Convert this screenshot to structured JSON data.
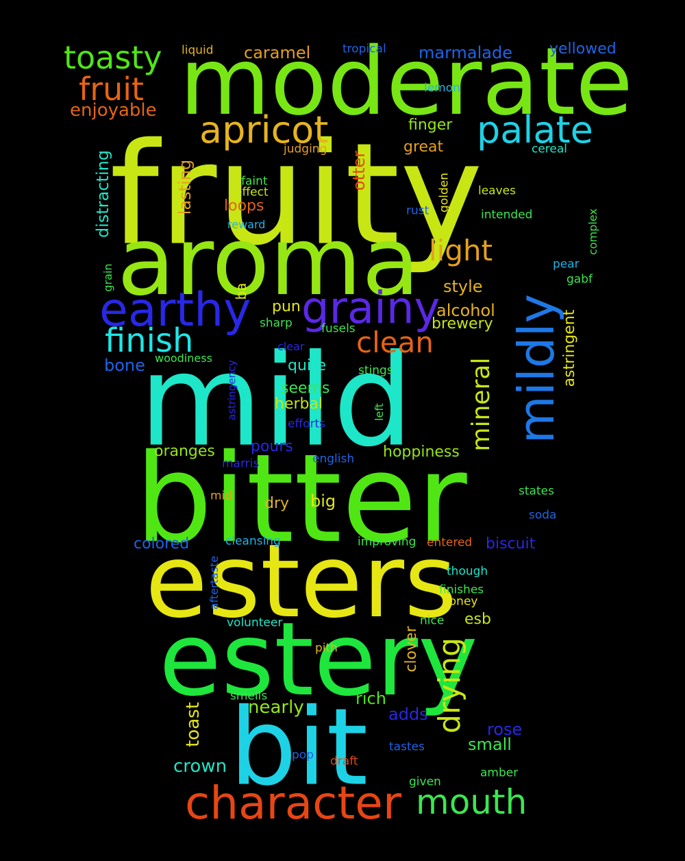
{
  "word_cloud": {
    "background": "#000000",
    "words": [
      {
        "text": "fruity",
        "color": "#c8e614"
      },
      {
        "text": "mild",
        "color": "#1ee6c8"
      },
      {
        "text": "bitter",
        "color": "#50e614"
      },
      {
        "text": "moderate",
        "color": "#78e614"
      },
      {
        "text": "aroma",
        "color": "#96e614"
      },
      {
        "text": "esters",
        "color": "#e6e614"
      },
      {
        "text": "estery",
        "color": "#1ee63c"
      },
      {
        "text": "bit",
        "color": "#1ed2e6"
      },
      {
        "text": "character",
        "color": "#e64614"
      },
      {
        "text": "earthy",
        "color": "#2828e6"
      },
      {
        "text": "grainy",
        "color": "#5a28e6"
      },
      {
        "text": "mildly",
        "color": "#1e78e6"
      },
      {
        "text": "apricot",
        "color": "#e6b41e"
      },
      {
        "text": "palate",
        "color": "#1ed2e6"
      },
      {
        "text": "toasty",
        "color": "#50e614"
      },
      {
        "text": "fruit",
        "color": "#e66414"
      },
      {
        "text": "finish",
        "color": "#1ee6e6"
      },
      {
        "text": "clean",
        "color": "#e66414"
      },
      {
        "text": "light",
        "color": "#e6a01e"
      },
      {
        "text": "mineral",
        "color": "#c8e614"
      },
      {
        "text": "drying",
        "color": "#c8e614"
      },
      {
        "text": "mouth",
        "color": "#3ce650"
      },
      {
        "text": "enjoyable",
        "color": "#e66414"
      },
      {
        "text": "caramel",
        "color": "#e6a01e"
      },
      {
        "text": "marmalade",
        "color": "#1e64e6"
      },
      {
        "text": "yellowed",
        "color": "#1e64e6"
      },
      {
        "text": "liquid",
        "color": "#e6b41e"
      },
      {
        "text": "tropical",
        "color": "#1e64e6"
      },
      {
        "text": "lemon",
        "color": "#1eb4e6"
      },
      {
        "text": "finger",
        "color": "#96e614"
      },
      {
        "text": "great",
        "color": "#e6a01e"
      },
      {
        "text": "judging",
        "color": "#e6a01e"
      },
      {
        "text": "cereal",
        "color": "#1ee6c8"
      },
      {
        "text": "distracting",
        "color": "#1ee6c8"
      },
      {
        "text": "lasting",
        "color": "#e6a01e"
      },
      {
        "text": "otter",
        "color": "#e64614"
      },
      {
        "text": "faint",
        "color": "#3ce650"
      },
      {
        "text": "effect",
        "color": "#c8e614"
      },
      {
        "text": "golden",
        "color": "#e6e614"
      },
      {
        "text": "leaves",
        "color": "#c8e614"
      },
      {
        "text": "loops",
        "color": "#e66414"
      },
      {
        "text": "rust",
        "color": "#1e64e6"
      },
      {
        "text": "intended",
        "color": "#3ce650"
      },
      {
        "text": "reward",
        "color": "#1eb4e6"
      },
      {
        "text": "complex",
        "color": "#3ce650"
      },
      {
        "text": "pear",
        "color": "#1eb4e6"
      },
      {
        "text": "gabf",
        "color": "#3ce650"
      },
      {
        "text": "grain",
        "color": "#3ce650"
      },
      {
        "text": "ba",
        "color": "#e6e614"
      },
      {
        "text": "style",
        "color": "#e6b41e"
      },
      {
        "text": "pun",
        "color": "#e6e614"
      },
      {
        "text": "alcohol",
        "color": "#e6b41e"
      },
      {
        "text": "astringent",
        "color": "#e6e614"
      },
      {
        "text": "sharp",
        "color": "#3ce650"
      },
      {
        "text": "fusels",
        "color": "#3ce650"
      },
      {
        "text": "brewery",
        "color": "#c8e614"
      },
      {
        "text": "clear",
        "color": "#2828e6"
      },
      {
        "text": "woodiness",
        "color": "#3ce650"
      },
      {
        "text": "bone",
        "color": "#1e64e6"
      },
      {
        "text": "quite",
        "color": "#1ee6c8"
      },
      {
        "text": "astringency",
        "color": "#2828e6"
      },
      {
        "text": "stings",
        "color": "#3ce650"
      },
      {
        "text": "seems",
        "color": "#3ce650"
      },
      {
        "text": "herbal",
        "color": "#c8e614"
      },
      {
        "text": "left",
        "color": "#3ce650"
      },
      {
        "text": "efforts",
        "color": "#2828e6"
      },
      {
        "text": "oranges",
        "color": "#96e614"
      },
      {
        "text": "pours",
        "color": "#2828e6"
      },
      {
        "text": "hoppiness",
        "color": "#96e614"
      },
      {
        "text": "english",
        "color": "#1e64e6"
      },
      {
        "text": "marris",
        "color": "#2828e6"
      },
      {
        "text": "mid",
        "color": "#e6a01e"
      },
      {
        "text": "big",
        "color": "#e6e614"
      },
      {
        "text": "dry",
        "color": "#e6b41e"
      },
      {
        "text": "states",
        "color": "#3ce650"
      },
      {
        "text": "soda",
        "color": "#1e64e6"
      },
      {
        "text": "colored",
        "color": "#1e64e6"
      },
      {
        "text": "cleansing",
        "color": "#1eb4e6"
      },
      {
        "text": "improving",
        "color": "#3ce650"
      },
      {
        "text": "entered",
        "color": "#e66414"
      },
      {
        "text": "biscuit",
        "color": "#2828e6"
      },
      {
        "text": "aftertaste",
        "color": "#1e64e6"
      },
      {
        "text": "though",
        "color": "#1ee6c8"
      },
      {
        "text": "finishes",
        "color": "#3ce650"
      },
      {
        "text": "honey",
        "color": "#e6e614"
      },
      {
        "text": "volunteer",
        "color": "#1ee6c8"
      },
      {
        "text": "nice",
        "color": "#3ce650"
      },
      {
        "text": "esb",
        "color": "#c8e614"
      },
      {
        "text": "clover",
        "color": "#e6b41e"
      },
      {
        "text": "pith",
        "color": "#e6b41e"
      },
      {
        "text": "smells",
        "color": "#3ce650"
      },
      {
        "text": "nearly",
        "color": "#96e614"
      },
      {
        "text": "rich",
        "color": "#50e614"
      },
      {
        "text": "adds",
        "color": "#2828e6"
      },
      {
        "text": "toast",
        "color": "#e6e614"
      },
      {
        "text": "rose",
        "color": "#2828e6"
      },
      {
        "text": "small",
        "color": "#3ce650"
      },
      {
        "text": "crown",
        "color": "#1ee6c8"
      },
      {
        "text": "pop",
        "color": "#1e64e6"
      },
      {
        "text": "draft",
        "color": "#e64614"
      },
      {
        "text": "tastes",
        "color": "#1e64e6"
      },
      {
        "text": "given",
        "color": "#3ce650"
      },
      {
        "text": "amber",
        "color": "#3ce650"
      }
    ]
  }
}
